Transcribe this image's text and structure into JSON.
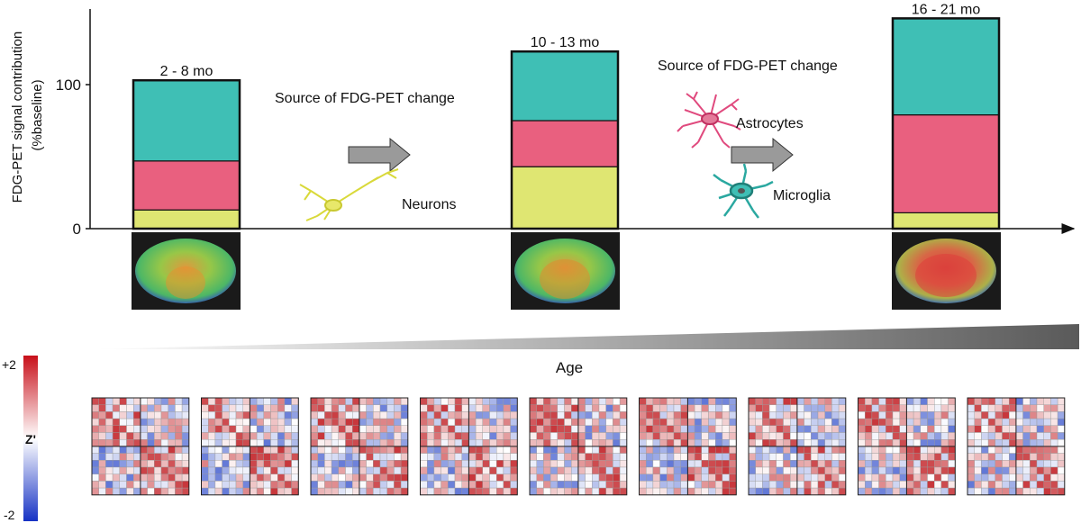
{
  "figure": {
    "y_axis_label_line1": "FDG-PET signal contribution",
    "y_axis_label_line2": "(%baseline)",
    "y_tick_0": "0",
    "y_tick_100": "100",
    "source_label_1": "Source of FDG-PET change",
    "source_label_2": "Source of FDG-PET change",
    "neurons_label": "Neurons",
    "astrocytes_label": "Astrocytes",
    "microglia_label": "Microglia",
    "age_label": "Age",
    "colorbar_max": "+2",
    "colorbar_min": "-2",
    "colorbar_label": "Z'"
  },
  "colors": {
    "neurons": "#dfe672",
    "astrocytes": "#e9607f",
    "microglia": "#3fbfb5",
    "outline": "#111111"
  },
  "chart_data": {
    "type": "bar",
    "stacked": true,
    "categories": [
      "2 - 8 mo",
      "10 - 13 mo",
      "16 - 21 mo"
    ],
    "series": [
      {
        "name": "Neurons",
        "values": [
          13,
          43,
          11
        ]
      },
      {
        "name": "Astrocytes",
        "values": [
          34,
          32,
          68
        ]
      },
      {
        "name": "Microglia",
        "values": [
          56,
          48,
          67
        ]
      }
    ],
    "ylim": [
      0,
      145
    ]
  },
  "matrices": {
    "count": 9,
    "size": 14
  }
}
